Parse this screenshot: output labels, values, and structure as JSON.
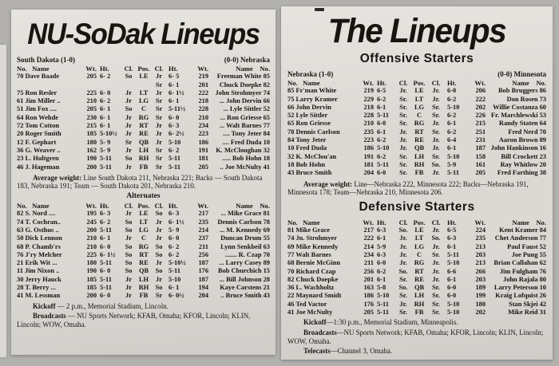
{
  "colors": {
    "background": "#b2b1ae",
    "paper": "#dbd9d4",
    "ink": "#17150f"
  },
  "left": {
    "title": "NU-SoDak Lineups",
    "team_left": "South Dakota (1-0)",
    "team_right": "(0-0) Nebraska",
    "header": [
      "No.   Name",
      "Wt.",
      "Ht.",
      "Cl.",
      "Pos.",
      "Cl.",
      "Ht.",
      "Wt.",
      "Name    No."
    ],
    "starters": [
      [
        "70 Dave Baade",
        "205",
        "6- 2",
        "So",
        "LE",
        "Jr",
        "6- 5",
        "219",
        "Freeman White 85"
      ],
      [
        "",
        "",
        "",
        "",
        "",
        "Sr",
        "6- 1",
        "201",
        "Chuck Doepke 82"
      ],
      [
        "75 Ron Resler",
        "225",
        "6- 0",
        "Jr",
        "LT",
        "Jr",
        "6- 1½",
        "222",
        "John Strohmyer 74"
      ],
      [
        "61 Jim Miller ..",
        "210",
        "6- 2",
        "Jr",
        "LG",
        "Sr",
        "6- 1",
        "218",
        "... John Dervin 66"
      ],
      [
        "51 Jim Fox ....",
        "205",
        "6- 1",
        "So",
        "C",
        "Sr",
        "5-11½",
        "228",
        "... Lyle Sittler 52"
      ],
      [
        "64 Ron Wehde",
        "230",
        "6- 1",
        "Jr",
        "RG",
        "Sr",
        "6- 0",
        "210",
        "... Ron Griesse 65"
      ],
      [
        "72 Tom Cotton",
        "215",
        "6- 1",
        "Jr",
        "RT",
        "Jr",
        "6- 3",
        "234",
        "... Walt Barnes 77"
      ],
      [
        "20 Roger Smith",
        "185",
        "5-10½",
        "Jr",
        "RE",
        "Jr",
        "6- 2½",
        "223",
        ".... Tony Jeter 84"
      ],
      [
        "12 F. Gephart",
        "180",
        "5- 9",
        "Sr",
        "QB",
        "Jr",
        "5-10",
        "186",
        ".... Fred Duda 10"
      ],
      [
        "36 G. Weaver ..",
        "162",
        "5- 9",
        "Jr",
        "LH",
        "Sr",
        "6- 2",
        "191",
        "K. McCloughan 32"
      ],
      [
        "23 L. Hultgren",
        "190",
        "5-11",
        "So",
        "RH",
        "Sr",
        "5-11",
        "181",
        "..... Bob Hohn 18"
      ],
      [
        "46 J. Hageman",
        "200",
        "5-11",
        "Jr",
        "FB",
        "Sr",
        "5-11",
        "205",
        ".. Joe McNulty 41"
      ]
    ],
    "average_weight": {
      "lead": "Average weight:",
      "rest": " Line South Dakota 211, Nebraska 221; Backs — South Dakota 183, Nebraska 191; Team — South Dakota 201, Nebraska 210."
    },
    "alternates_title": "Alternates",
    "alternates": [
      [
        "82 S. Nord ....",
        "195",
        "6- 3",
        "Jr",
        "LE",
        "So",
        "6- 3",
        "217",
        "... Mike Grace 81"
      ],
      [
        "74 T. Cochran..",
        "245",
        "6- 2",
        "So",
        "LT",
        "Jr",
        "6- 1½",
        "235",
        "Dennis Carlson 78"
      ],
      [
        "63 G. Osthus ..",
        "200",
        "5-11",
        "So",
        "LG",
        "Jr",
        "5- 9",
        "214",
        "... M. Kennedy 69"
      ],
      [
        "50 Dick Lennon",
        "210",
        "6- 1",
        "Jr",
        "C",
        "Jr",
        "6- 0",
        "237",
        "Duncan Drum 55"
      ],
      [
        "68 P. Chamb'rs",
        "210",
        "6- 0",
        "So",
        "RG",
        "So",
        "6- 2",
        "211",
        "Lynn Senkbeil 63"
      ],
      [
        "76 J'ry Melcher",
        "225",
        "6- 1½",
        "So",
        "RT",
        "So",
        "6- 2",
        "256",
        "....... R. Czap 70"
      ],
      [
        "21 Erik Wit ...",
        "180",
        "5-11",
        "So",
        "RE",
        "Jr",
        "5-10½",
        "187",
        "... Larry Casey 89"
      ],
      [
        "11 Jim Nixon ..",
        "190",
        "6- 0",
        "So",
        "QB",
        "So",
        "5-11",
        "176",
        "Bob Churchich 15"
      ],
      [
        "30 Jerry Hauck",
        "185",
        "5-11",
        "Jr",
        "LH",
        "Jr",
        "5-10",
        "187",
        "... Bill Johnson 28"
      ],
      [
        "28 T. Berry ...",
        "185",
        "5-11",
        "Jr",
        "RH",
        "So",
        "6- 1",
        "194",
        "Kaye Carstens 21"
      ],
      [
        "41 M. Lessman",
        "200",
        "6- 0",
        "Jr",
        "FB",
        "Sr",
        "6- 0½",
        "204",
        ".. Bruce Smith 43"
      ]
    ],
    "kickoff": {
      "lead": "Kickoff",
      "rest": " — 2 p.m., Memorial Stadium, Lincoln."
    },
    "broadcasts": {
      "lead": "Broadcasts",
      "rest": " — NU Sports Network; KFAB, Omaha; KFOR, Lincoln; KLIN, Lincoln; WOW, Omaha."
    }
  },
  "right": {
    "title": "The Lineups",
    "offensive_title": "Offensive Starters",
    "team_left": "Nebraska (1-0)",
    "team_right": "(0-0) Minnesota",
    "header": [
      "No.   Name",
      "Wt.",
      "Ht.",
      "Cl.",
      "Pos.",
      "Cl.",
      "Ht.",
      "Wt.",
      "Name    No."
    ],
    "offensive": [
      [
        "85 Fr'man White",
        "219",
        "6-5",
        "Jr.",
        "LE",
        "Jr.",
        "6-0",
        "206",
        "Bob Bruggers 86"
      ],
      [
        "75 Larry Kramer",
        "229",
        "6-2",
        "Sr.",
        "LT",
        "Jr.",
        "6-2",
        "222",
        "Don Rosen 73"
      ],
      [
        "66 John Dervin",
        "218",
        "6-1",
        "Sr.",
        "LG",
        "Sr.",
        "5-10",
        "202",
        "Willie Costanza 60"
      ],
      [
        "52 Lyle Sittler",
        "228",
        "5-11",
        "Sr.",
        "C",
        "Sr.",
        "6-2",
        "226",
        "Fr. Marchlewski 53"
      ],
      [
        "65 Ron Griesse",
        "210",
        "6-0",
        "Sr.",
        "RG",
        "Jr.",
        "6-1",
        "215",
        "Randy Staten 64"
      ],
      [
        "78 Dennis Carlson",
        "235",
        "6-1",
        "Jr.",
        "RT",
        "Sr.",
        "6-2",
        "251",
        "Fred Nerd 70"
      ],
      [
        "84 Tony Jeter",
        "223",
        "6-2",
        "Jr.",
        "RE",
        "Jr.",
        "6-4",
        "231",
        "Aaron Brown 89"
      ],
      [
        "10 Fred Duda",
        "186",
        "5-10",
        "Jr.",
        "QB",
        "Jr.",
        "6-1",
        "187",
        "John Hankinson 16"
      ],
      [
        "32 K. McClou'an",
        "191",
        "6-2",
        "Sr.",
        "LH",
        "Sr.",
        "5-10",
        "158",
        "Bill Crockett 23"
      ],
      [
        "18 Bob Hohn",
        "181",
        "5-11",
        "Sr.",
        "RH",
        "So.",
        "5-9",
        "161",
        "Ray Whitlow 20"
      ],
      [
        "43 Bruce Smith",
        "204",
        "6-0",
        "Sr.",
        "FB",
        "Jr.",
        "5-11",
        "205",
        "Fred Farthing 38"
      ]
    ],
    "average_weight": {
      "lead": "Average weight:",
      "rest": " Line—Nebraska 222, Minnesota 222; Backs—Nebraska 191, Minnesota 178; Team—Nebraska 210, Minnesota 206."
    },
    "defensive_title": "Defensive Starters",
    "defensive": [
      [
        "81 Mike Grace",
        "217",
        "6-3",
        "So.",
        "LE",
        "Jr.",
        "6-5",
        "224",
        "Kent Kramer 84"
      ],
      [
        "74 Jn. Strohmyer",
        "222",
        "6-1",
        "Jr.",
        "LT",
        "So.",
        "6-3",
        "235",
        "Chet Anderson 77"
      ],
      [
        "69 Mike Kennedy",
        "214",
        "5-9",
        "Jr.",
        "LG",
        "Jr.",
        "6-1",
        "213",
        "Paul Faust 52"
      ],
      [
        "77 Walt Barnes",
        "234",
        "6-3",
        "Jr.",
        "C",
        "Sr.",
        "5-11",
        "203",
        "Joe Pung 55"
      ],
      [
        "68 Bernie McGinn",
        "211",
        "6-0",
        "Jr.",
        "RG",
        "Jr.",
        "5-10",
        "213",
        "Brian Callahan 62"
      ],
      [
        "70 Richard Czap",
        "256",
        "6-2",
        "So.",
        "RT",
        "Jr.",
        "6-6",
        "266",
        "Jim Fulgham 76"
      ],
      [
        "82 Chuck Doepke",
        "201",
        "6-1",
        "Sr.",
        "RE",
        "Jr.",
        "6-1",
        "203",
        "John Rajala 80"
      ],
      [
        "36 L. Wachholtz",
        "163",
        "5-8",
        "So.",
        "QB",
        "Sr.",
        "6-0",
        "189",
        "Larry Peterson 10"
      ],
      [
        "22 Maynard Smidt",
        "186",
        "5-10",
        "Sr.",
        "LH",
        "Sr.",
        "6-0",
        "199",
        "Kraig Lofquist 26"
      ],
      [
        "46 Ted Vactor",
        "176",
        "5-11",
        "Jr.",
        "RH",
        "Sr.",
        "5-10",
        "180",
        "Stan Skjei 42"
      ],
      [
        "41 Joe McNulty",
        "205",
        "5-11",
        "Sr.",
        "FB",
        "Sr.",
        "5-10",
        "202",
        "Mike Reid 31"
      ]
    ],
    "kickoff": {
      "lead": "Kickoff",
      "rest": "—1:30 p.m., Memorial Stadium, Minneapolis."
    },
    "broadcasts": {
      "lead": "Broadcasts",
      "rest": "—NU Sports Network; KFAB, Omaha; KFOR, Lincoln; KLIN, Lincoln; WOW, Omaha."
    },
    "telecasts": {
      "lead": "Telecasts",
      "rest": "—Channel 3, Omaha."
    }
  }
}
